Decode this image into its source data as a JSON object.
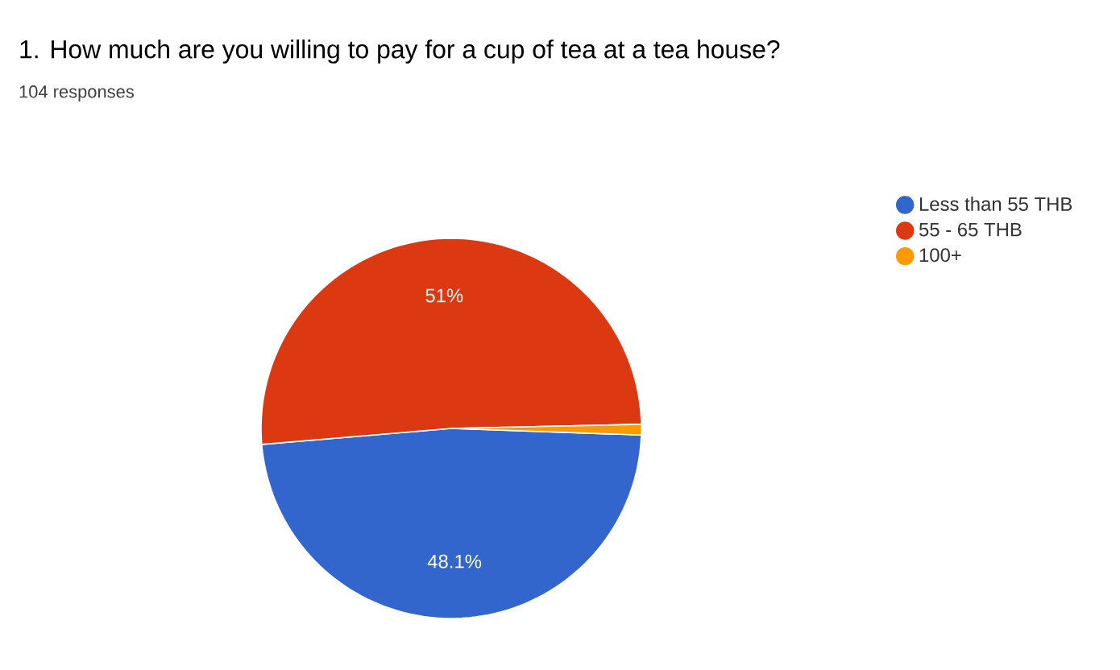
{
  "chart_data": {
    "type": "pie",
    "title": "1. How much are you willing to pay for a cup of tea at a tea house?",
    "subtitle": "104 responses",
    "categories": [
      "Less than 55 THB",
      "55 - 65 THB",
      "100+"
    ],
    "values": [
      48.1,
      51,
      0.9
    ],
    "colors": [
      "#3366cc",
      "#dc3912",
      "#ff9900"
    ],
    "value_labels": [
      "48.1%",
      "51%",
      null
    ],
    "legend": "top right"
  }
}
